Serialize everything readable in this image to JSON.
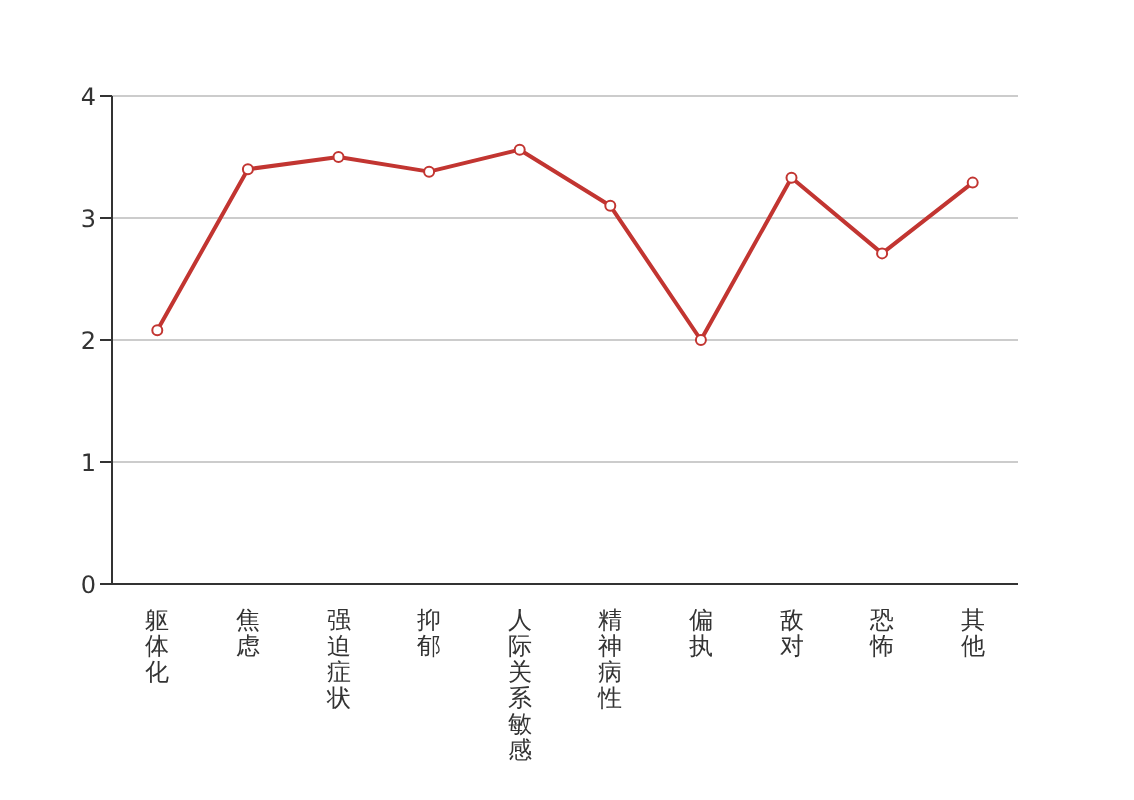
{
  "chart_data": {
    "type": "line",
    "categories": [
      "躯体化",
      "焦虑",
      "强迫症状",
      "抑郁",
      "人际关系敏感",
      "精神病性",
      "偏执",
      "敌对",
      "恐怖",
      "其他"
    ],
    "series": [
      {
        "color": "#c23531",
        "values": [
          2.08,
          3.4,
          3.5,
          3.38,
          3.56,
          3.1,
          2.0,
          3.33,
          2.71,
          3.29
        ]
      }
    ],
    "ylim": [
      0,
      4
    ],
    "yticks": [
      0,
      1,
      2,
      3,
      4
    ],
    "grid": "y",
    "marker": "circle",
    "line_style": "solid",
    "legend": false
  }
}
